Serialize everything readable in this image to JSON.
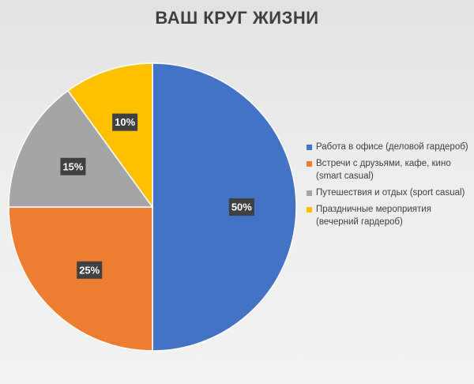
{
  "chart_data": {
    "type": "pie",
    "title": "ВАШ КРУГ ЖИЗНИ",
    "categories": [
      "Работа в офисе (деловой гардероб)",
      "Встречи с друзьями, кафе, кино (smart casual)",
      "Путешествия и отдых (sport casual)",
      "Праздничные мероприятия (вечерний гардероб)"
    ],
    "values": [
      50,
      25,
      15,
      10
    ],
    "data_labels": [
      "50%",
      "25%",
      "15%",
      "10%"
    ],
    "colors": [
      "#4472c4",
      "#ed7d31",
      "#a5a5a5",
      "#ffc000"
    ],
    "legend_position": "right"
  }
}
